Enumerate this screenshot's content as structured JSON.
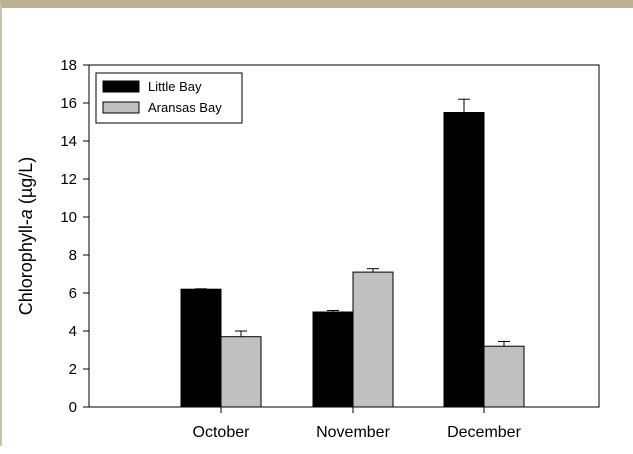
{
  "chart_data": {
    "type": "bar",
    "categories": [
      "October",
      "November",
      "December"
    ],
    "series": [
      {
        "name": "Little Bay",
        "values": [
          6.2,
          5.0,
          15.5
        ],
        "errors": [
          0.02,
          0.08,
          0.7
        ],
        "color": "#000000"
      },
      {
        "name": "Aransas Bay",
        "values": [
          3.7,
          7.1,
          3.2
        ],
        "errors": [
          0.3,
          0.18,
          0.25
        ],
        "color": "#c0c0c0"
      }
    ],
    "ylabel_prefix": "Chlorophyll-",
    "ylabel_italic": "a",
    "ylabel_suffix": " (µg/L)",
    "ylim": [
      0,
      18
    ],
    "yticks": [
      0,
      2,
      4,
      6,
      8,
      10,
      12,
      14,
      16,
      18
    ],
    "legend_position": "top-left",
    "grid": false
  }
}
